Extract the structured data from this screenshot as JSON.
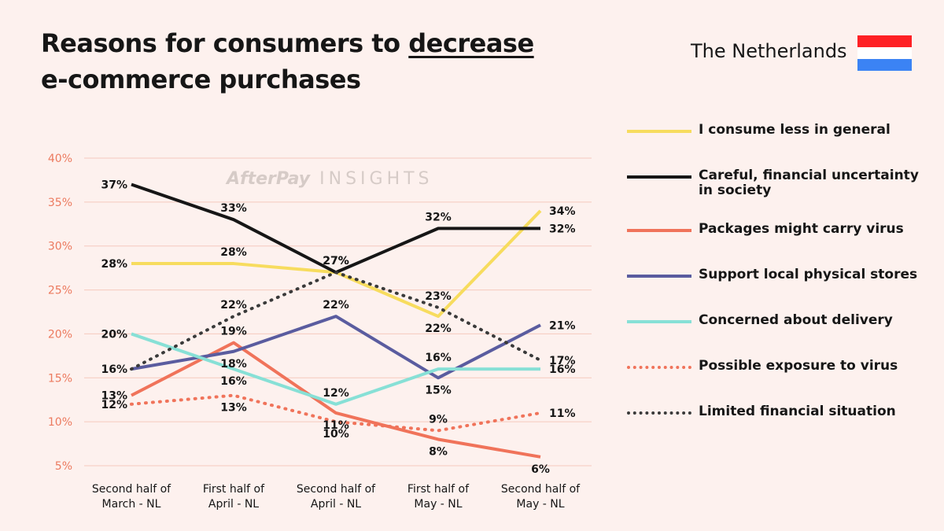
{
  "header": {
    "title_line1_pre": "Reasons for consumers to ",
    "title_line1_underlined": "decrease",
    "title_line2": "e-commerce purchases",
    "country": "The Netherlands"
  },
  "flag_colors": [
    "#fe2125",
    "#ffffff",
    "#3b83f4"
  ],
  "watermark": {
    "brand": "AfterPay",
    "suffix": "INSIGHTS"
  },
  "chart_data": {
    "type": "line",
    "title": "Reasons for consumers to decrease e-commerce purchases",
    "xlabel": "",
    "ylabel": "",
    "categories": [
      [
        "Second half of",
        "March - NL"
      ],
      [
        "First half of",
        "April - NL"
      ],
      [
        "Second half of",
        "April - NL"
      ],
      [
        "First half of",
        "May - NL"
      ],
      [
        "Second half of",
        "May - NL"
      ]
    ],
    "ylim": [
      5,
      40
    ],
    "yticks": [
      5,
      10,
      15,
      20,
      25,
      30,
      35,
      40
    ],
    "ytick_suffix": "%",
    "grid": true,
    "legend_position": "right",
    "series": [
      {
        "name": "I consume less in general",
        "color": "#f7dc5e",
        "dashed": false,
        "values": [
          28,
          28,
          27,
          22,
          34
        ],
        "label_pos": [
          "left",
          "above",
          "above",
          "below",
          "right"
        ]
      },
      {
        "name": "Careful, financial uncertainty in society",
        "color": "#161616",
        "dashed": false,
        "values": [
          37,
          33,
          27,
          32,
          32
        ],
        "label_pos": [
          "left",
          "above",
          "above",
          "above",
          "right"
        ]
      },
      {
        "name": "Packages might carry virus",
        "color": "#f0735a",
        "dashed": false,
        "values": [
          13,
          19,
          11,
          8,
          6
        ],
        "label_pos": [
          "left",
          "above",
          "below",
          "below",
          "below"
        ]
      },
      {
        "name": "Support local physical stores",
        "color": "#5a5c9f",
        "dashed": false,
        "values": [
          16,
          18,
          22,
          15,
          21
        ],
        "label_pos": [
          "left",
          "below",
          "above",
          "below",
          "right"
        ]
      },
      {
        "name": "Concerned about delivery",
        "color": "#87e0d6",
        "dashed": false,
        "values": [
          20,
          16,
          12,
          16,
          16
        ],
        "label_pos": [
          "left",
          "below",
          "above",
          "above",
          "right"
        ]
      },
      {
        "name": "Possible exposure to virus",
        "color": "#f0735a",
        "dashed": true,
        "values": [
          12,
          13,
          10,
          9,
          11
        ],
        "label_pos": [
          "left",
          "below",
          "below",
          "above",
          "right"
        ]
      },
      {
        "name": "Limited financial situation",
        "color": "#3a3a3a",
        "dashed": true,
        "values": [
          16,
          22,
          27,
          23,
          17
        ],
        "label_pos": [
          "none",
          "above",
          "none",
          "above",
          "right"
        ]
      }
    ]
  }
}
